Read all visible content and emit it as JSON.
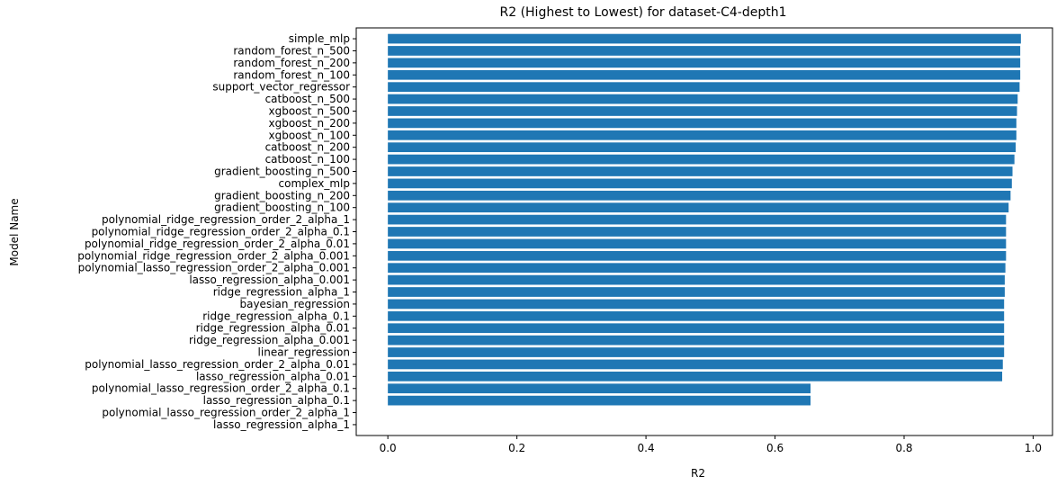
{
  "chart_data": {
    "type": "bar",
    "orientation": "horizontal",
    "title": "R2 (Highest to Lowest) for dataset-C4-depth1",
    "xlabel": "R2",
    "ylabel": "Model Name",
    "xlim": [
      -0.049,
      1.03
    ],
    "xticks": [
      "0.0",
      "0.2",
      "0.4",
      "0.6",
      "0.8",
      "1.0"
    ],
    "grid": false,
    "bar_color": "#1f77b4",
    "categories": [
      "simple_mlp",
      "random_forest_n_500",
      "random_forest_n_200",
      "random_forest_n_100",
      "support_vector_regressor",
      "catboost_n_500",
      "xgboost_n_500",
      "xgboost_n_200",
      "xgboost_n_100",
      "catboost_n_200",
      "catboost_n_100",
      "gradient_boosting_n_500",
      "complex_mlp",
      "gradient_boosting_n_200",
      "gradient_boosting_n_100",
      "polynomial_ridge_regression_order_2_alpha_1",
      "polynomial_ridge_regression_order_2_alpha_0.1",
      "polynomial_ridge_regression_order_2_alpha_0.01",
      "polynomial_ridge_regression_order_2_alpha_0.001",
      "polynomial_lasso_regression_order_2_alpha_0.001",
      "lasso_regression_alpha_0.001",
      "ridge_regression_alpha_1",
      "bayesian_regression",
      "ridge_regression_alpha_0.1",
      "ridge_regression_alpha_0.01",
      "ridge_regression_alpha_0.001",
      "linear_regression",
      "polynomial_lasso_regression_order_2_alpha_0.01",
      "lasso_regression_alpha_0.01",
      "polynomial_lasso_regression_order_2_alpha_0.1",
      "lasso_regression_alpha_0.1",
      "polynomial_lasso_regression_order_2_alpha_1",
      "lasso_regression_alpha_1"
    ],
    "values": [
      0.981,
      0.98,
      0.98,
      0.98,
      0.979,
      0.976,
      0.975,
      0.974,
      0.974,
      0.973,
      0.971,
      0.968,
      0.967,
      0.965,
      0.962,
      0.958,
      0.958,
      0.958,
      0.958,
      0.957,
      0.956,
      0.956,
      0.955,
      0.955,
      0.955,
      0.955,
      0.955,
      0.953,
      0.952,
      0.655,
      0.655,
      0.0,
      0.0
    ]
  }
}
